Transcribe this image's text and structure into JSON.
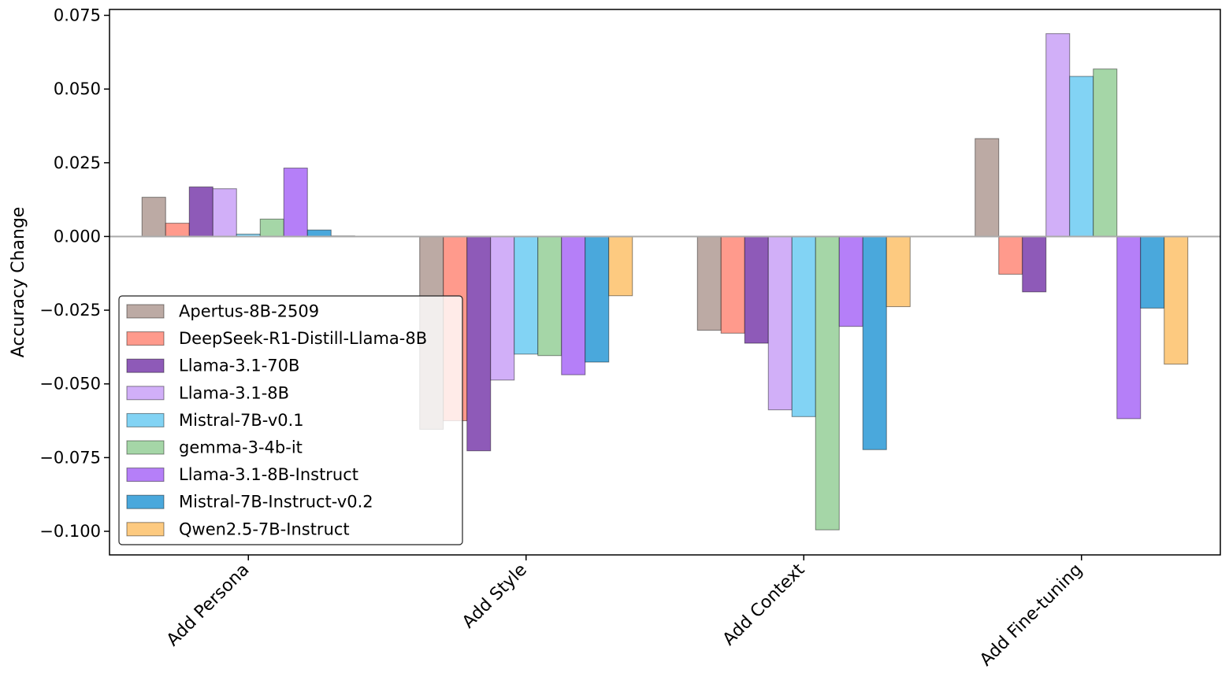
{
  "chart_data": {
    "type": "bar",
    "title": "",
    "xlabel": "",
    "ylabel": "Accuracy Change",
    "ylim": [
      -0.108,
      0.077
    ],
    "yticks": [
      0.075,
      0.05,
      0.025,
      0.0,
      -0.025,
      -0.05,
      -0.075,
      -0.1
    ],
    "ytick_labels": [
      "0.075",
      "0.050",
      "0.025",
      "0.000",
      "−0.025",
      "−0.050",
      "−0.075",
      "−0.100"
    ],
    "categories": [
      "Add Persona",
      "Add Style",
      "Add Context",
      "Add Fine-tuning"
    ],
    "legend_position": "lower-left",
    "grid": false,
    "series": [
      {
        "name": "Apertus-8B-2509",
        "color": "#bcaaa4",
        "values": [
          0.0133,
          -0.0654,
          -0.0318,
          0.0332
        ]
      },
      {
        "name": "DeepSeek-R1-Distill-Llama-8B",
        "color": "#ff9a8c",
        "values": [
          0.0045,
          -0.0625,
          -0.0328,
          -0.0128
        ]
      },
      {
        "name": "Llama-3.1-70B",
        "color": "#8e5ab8",
        "values": [
          0.0168,
          -0.0727,
          -0.0362,
          -0.0188
        ]
      },
      {
        "name": "Llama-3.1-8B",
        "color": "#d1aff8",
        "values": [
          0.0162,
          -0.0487,
          -0.0588,
          0.0688
        ]
      },
      {
        "name": "Mistral-7B-v0.1",
        "color": "#82d3f4",
        "values": [
          0.0008,
          -0.0399,
          -0.0611,
          0.0543
        ]
      },
      {
        "name": "gemma-3-4b-it",
        "color": "#a5d6a7",
        "values": [
          0.0059,
          -0.0404,
          -0.0995,
          0.0568
        ]
      },
      {
        "name": "Llama-3.1-8B-Instruct",
        "color": "#b57ff8",
        "values": [
          0.0232,
          -0.0469,
          -0.0305,
          -0.0618
        ]
      },
      {
        "name": "Mistral-7B-Instruct-v0.2",
        "color": "#4aa8dc",
        "values": [
          0.0022,
          -0.0426,
          -0.0723,
          -0.0243
        ]
      },
      {
        "name": "Qwen2.5-7B-Instruct",
        "color": "#fdca80",
        "values": [
          0.0002,
          -0.0201,
          -0.0238,
          -0.0433
        ]
      }
    ]
  }
}
